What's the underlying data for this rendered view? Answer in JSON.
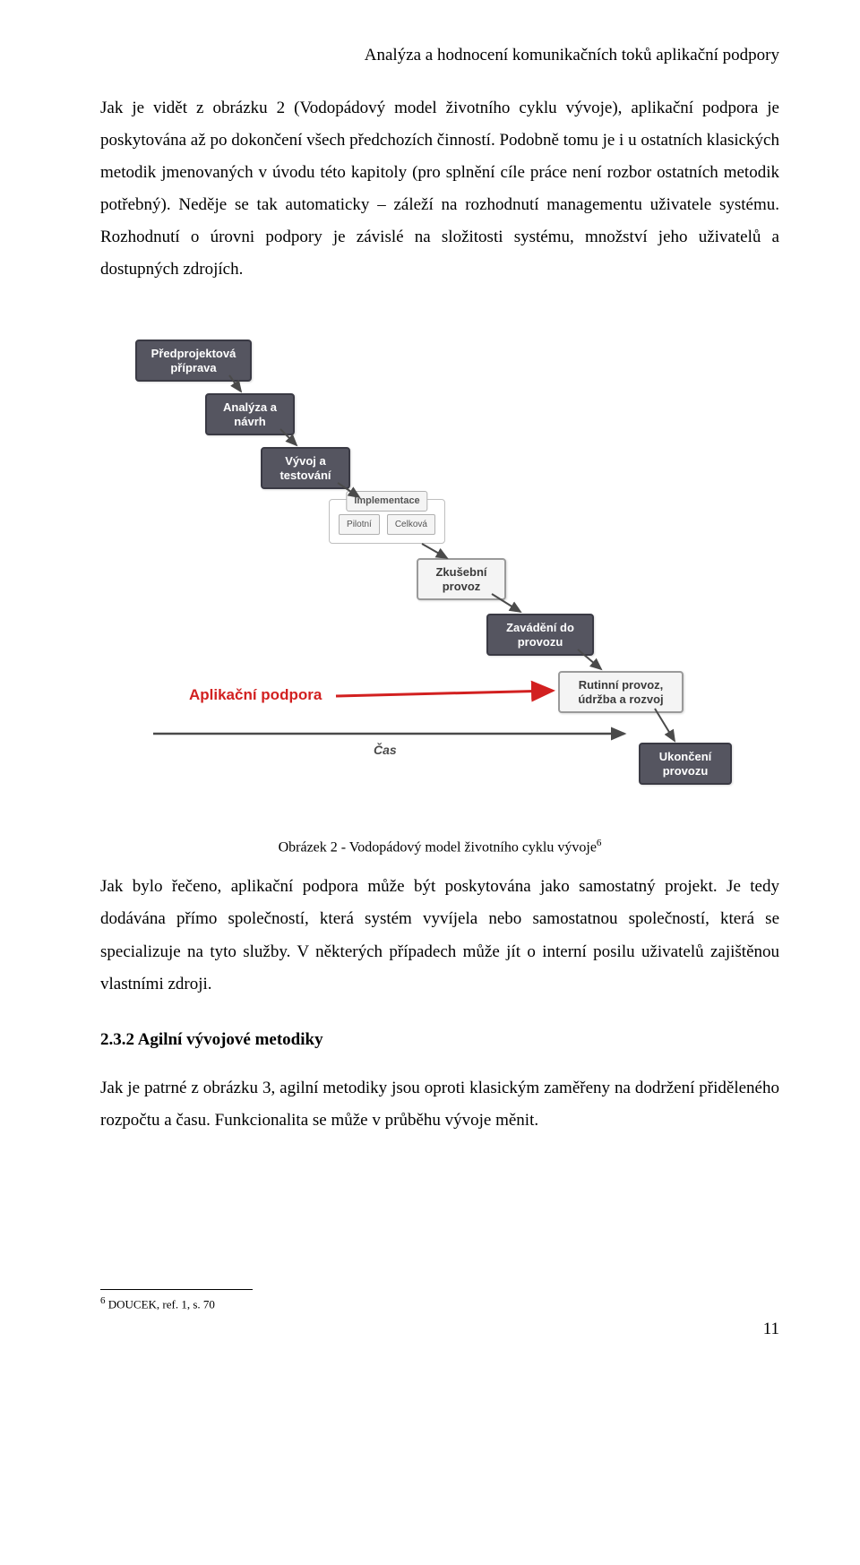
{
  "header": "Analýza a hodnocení komunikačních toků aplikační podpory",
  "para1": "Jak je vidět z obrázku 2 (Vodopádový model životního cyklu vývoje), aplikační podpora je poskytována až po dokončení všech předchozích činností. Podobně tomu je i u ostatních klasických metodik jmenovaných v úvodu této kapitoly (pro splnění cíle práce není rozbor ostatních metodik potřebný). Neděje se tak automaticky – záleží na rozhodnutí managementu uživatele systému. Rozhodnutí o úrovni podpory je závislé na složitosti systému, množství jeho uživatelů a dostupných zdrojích.",
  "diagram": {
    "nodes": {
      "n1": "Předprojektová\npříprava",
      "n2": "Analýza a\nnávrh",
      "n3": "Vývoj a\ntestování",
      "impl_title": "Implementace",
      "impl_a": "Pilotní",
      "impl_b": "Celková",
      "n5": "Zkušební\nprovoz",
      "n6": "Zavádění do\nprovozu",
      "n7": "Rutinní provoz,\núdržba a rozvoj",
      "n8": "Ukončení\nprovozu"
    },
    "red_label": "Aplikační podpora",
    "cas_label": "Čas",
    "colors": {
      "node_dark_bg": "#555560",
      "node_dark_text": "#ffffff",
      "node_light_bg": "#f4f4f4",
      "node_border": "#9a9a9a",
      "red": "#d22020",
      "arrow": "#4a4a4a"
    }
  },
  "caption_text": "Obrázek 2 - Vodopádový model životního cyklu vývoje",
  "caption_ref": "6",
  "para2": "Jak bylo řečeno, aplikační podpora může být poskytována jako samostatný projekt. Je tedy dodávána přímo společností, která systém vyvíjela nebo samostatnou společností, která se specializuje na tyto služby. V některých případech může jít o interní posilu uživatelů zajištěnou vlastními zdroji.",
  "section_heading": "2.3.2 Agilní vývojové metodiky",
  "para3": "Jak je patrné z obrázku 3, agilní metodiky jsou oproti klasickým zaměřeny na dodržení přiděleného rozpočtu a času. Funkcionalita se může v průběhu vývoje měnit.",
  "footnote_marker": "6",
  "footnote_text": " DOUCEK, ref. 1, s. 70",
  "page_number": "11"
}
